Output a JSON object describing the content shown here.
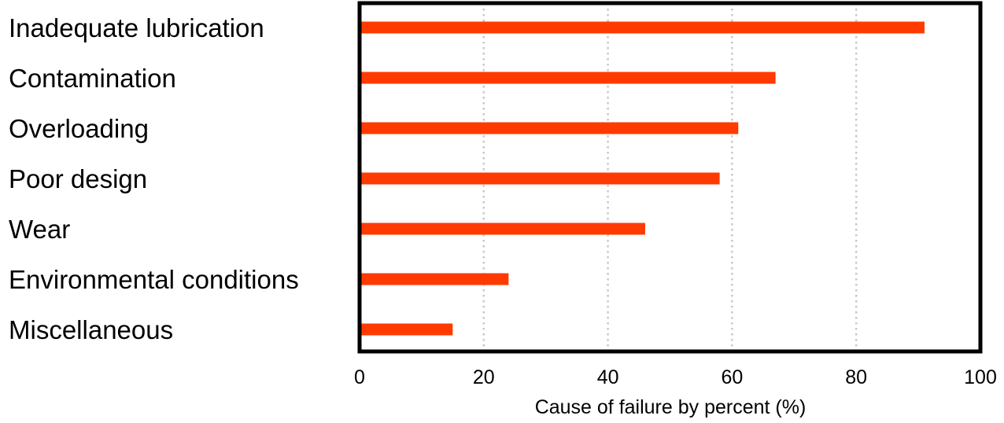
{
  "chart_data": {
    "type": "bar",
    "orientation": "horizontal",
    "title": "",
    "xlabel": "Cause of failure by percent (%)",
    "ylabel": "",
    "categories": [
      "Inadequate lubrication",
      "Contamination",
      "Overloading",
      "Poor design",
      "Wear",
      "Environmental conditions",
      "Miscellaneous"
    ],
    "values": [
      91,
      67,
      61,
      58,
      46,
      24,
      15
    ],
    "xlim": [
      0,
      100
    ],
    "xticks": [
      "0",
      "20",
      "40",
      "60",
      "80",
      "100"
    ],
    "grid": "vertical dotted",
    "bar_color": "#ff3a00",
    "grid_color": "#c8c8c8"
  }
}
